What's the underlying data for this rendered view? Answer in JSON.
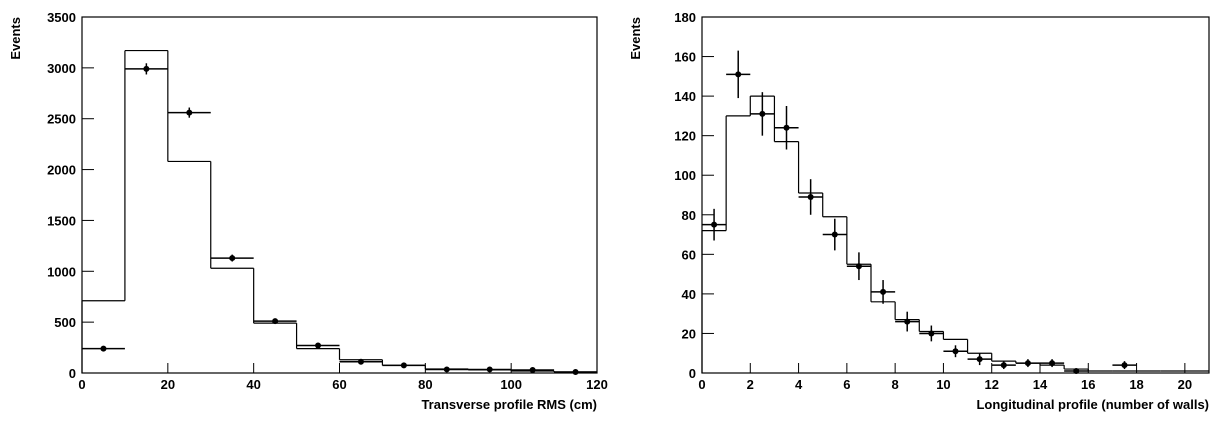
{
  "chart_data": [
    {
      "type": "histogram",
      "y_label": "Events",
      "x_label": "Transverse profile RMS (cm)",
      "bins": [
        0,
        10,
        20,
        30,
        40,
        50,
        60,
        70,
        80,
        90,
        100,
        110,
        120
      ],
      "values": [
        710,
        3170,
        2080,
        1030,
        490,
        240,
        130,
        75,
        40,
        30,
        20,
        10
      ],
      "data_points": {
        "values": [
          240,
          2990,
          2560,
          1130,
          510,
          270,
          110,
          75,
          35,
          35,
          30,
          10
        ],
        "errors": [
          15,
          55,
          50,
          34,
          23,
          16,
          10,
          9,
          6,
          6,
          5,
          3
        ]
      },
      "color": "#000000",
      "xlim": [
        0,
        120
      ],
      "xticks": [
        0,
        20,
        40,
        60,
        80,
        100,
        120
      ],
      "ylim": [
        0,
        3500
      ],
      "yticks": [
        0,
        500,
        1000,
        1500,
        2000,
        2500,
        3000,
        3500
      ]
    },
    {
      "type": "histogram",
      "y_label": "Events",
      "x_label": "Longitudinal profile (number of walls)",
      "bins": [
        0,
        1,
        2,
        3,
        4,
        5,
        6,
        7,
        8,
        9,
        10,
        11,
        12,
        13,
        14,
        15,
        16,
        17,
        18,
        19,
        20,
        21
      ],
      "values": [
        72,
        130,
        140,
        117,
        91,
        79,
        55,
        36,
        27,
        21,
        17,
        10,
        6,
        5,
        4,
        2,
        1,
        1,
        1,
        1,
        1
      ],
      "data_points": {
        "values": [
          75,
          151,
          131,
          124,
          89,
          70,
          54,
          41,
          26,
          20,
          11,
          7,
          4,
          5,
          5,
          1,
          null,
          4,
          null,
          null,
          null
        ],
        "errors": [
          8,
          12,
          11,
          11,
          9,
          8,
          7,
          6,
          5,
          4,
          3,
          3,
          2,
          2,
          2,
          1,
          null,
          2,
          null,
          null,
          null
        ]
      },
      "color": "#000000",
      "xlim": [
        0,
        21
      ],
      "xticks": [
        0,
        2,
        4,
        6,
        8,
        10,
        12,
        14,
        16,
        18,
        20
      ],
      "ylim": [
        0,
        180
      ],
      "yticks": [
        0,
        20,
        40,
        60,
        80,
        100,
        120,
        140,
        160,
        180
      ]
    }
  ]
}
